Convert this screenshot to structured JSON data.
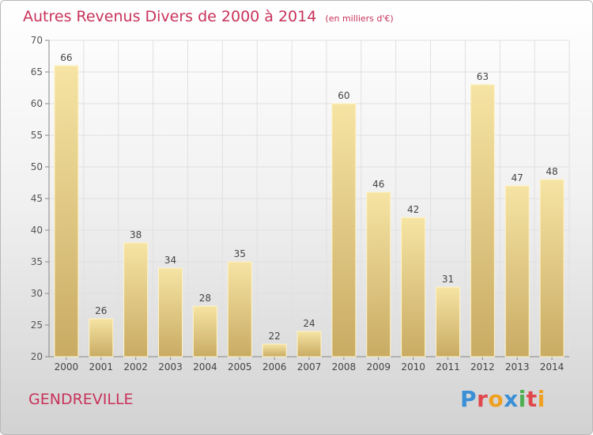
{
  "title": {
    "main": "Autres Revenus Divers de 2000 à 2014",
    "unit": "(en milliers d'€)"
  },
  "town": "GENDREVILLE",
  "brand": {
    "text": "Proxiti",
    "colors": [
      "#3a8fd6",
      "#e0474c",
      "#f0a020",
      "#3a8fd6",
      "#4caf50",
      "#e0474c",
      "#f0a020"
    ]
  },
  "colors": {
    "accent": "#c8325a",
    "bar_light": "#f6e4a4",
    "bar_dark": "#c9ab63"
  },
  "chart_data": {
    "type": "bar",
    "categories": [
      "2000",
      "2001",
      "2002",
      "2003",
      "2004",
      "2005",
      "2006",
      "2007",
      "2008",
      "2009",
      "2010",
      "2011",
      "2012",
      "2013",
      "2014"
    ],
    "values": [
      66,
      26,
      38,
      34,
      28,
      35,
      22,
      24,
      60,
      46,
      42,
      31,
      63,
      47,
      48
    ],
    "ylim": [
      20,
      70
    ],
    "yticks": [
      20,
      25,
      30,
      35,
      40,
      45,
      50,
      55,
      60,
      65,
      70
    ],
    "grid": true,
    "data_labels": true
  }
}
